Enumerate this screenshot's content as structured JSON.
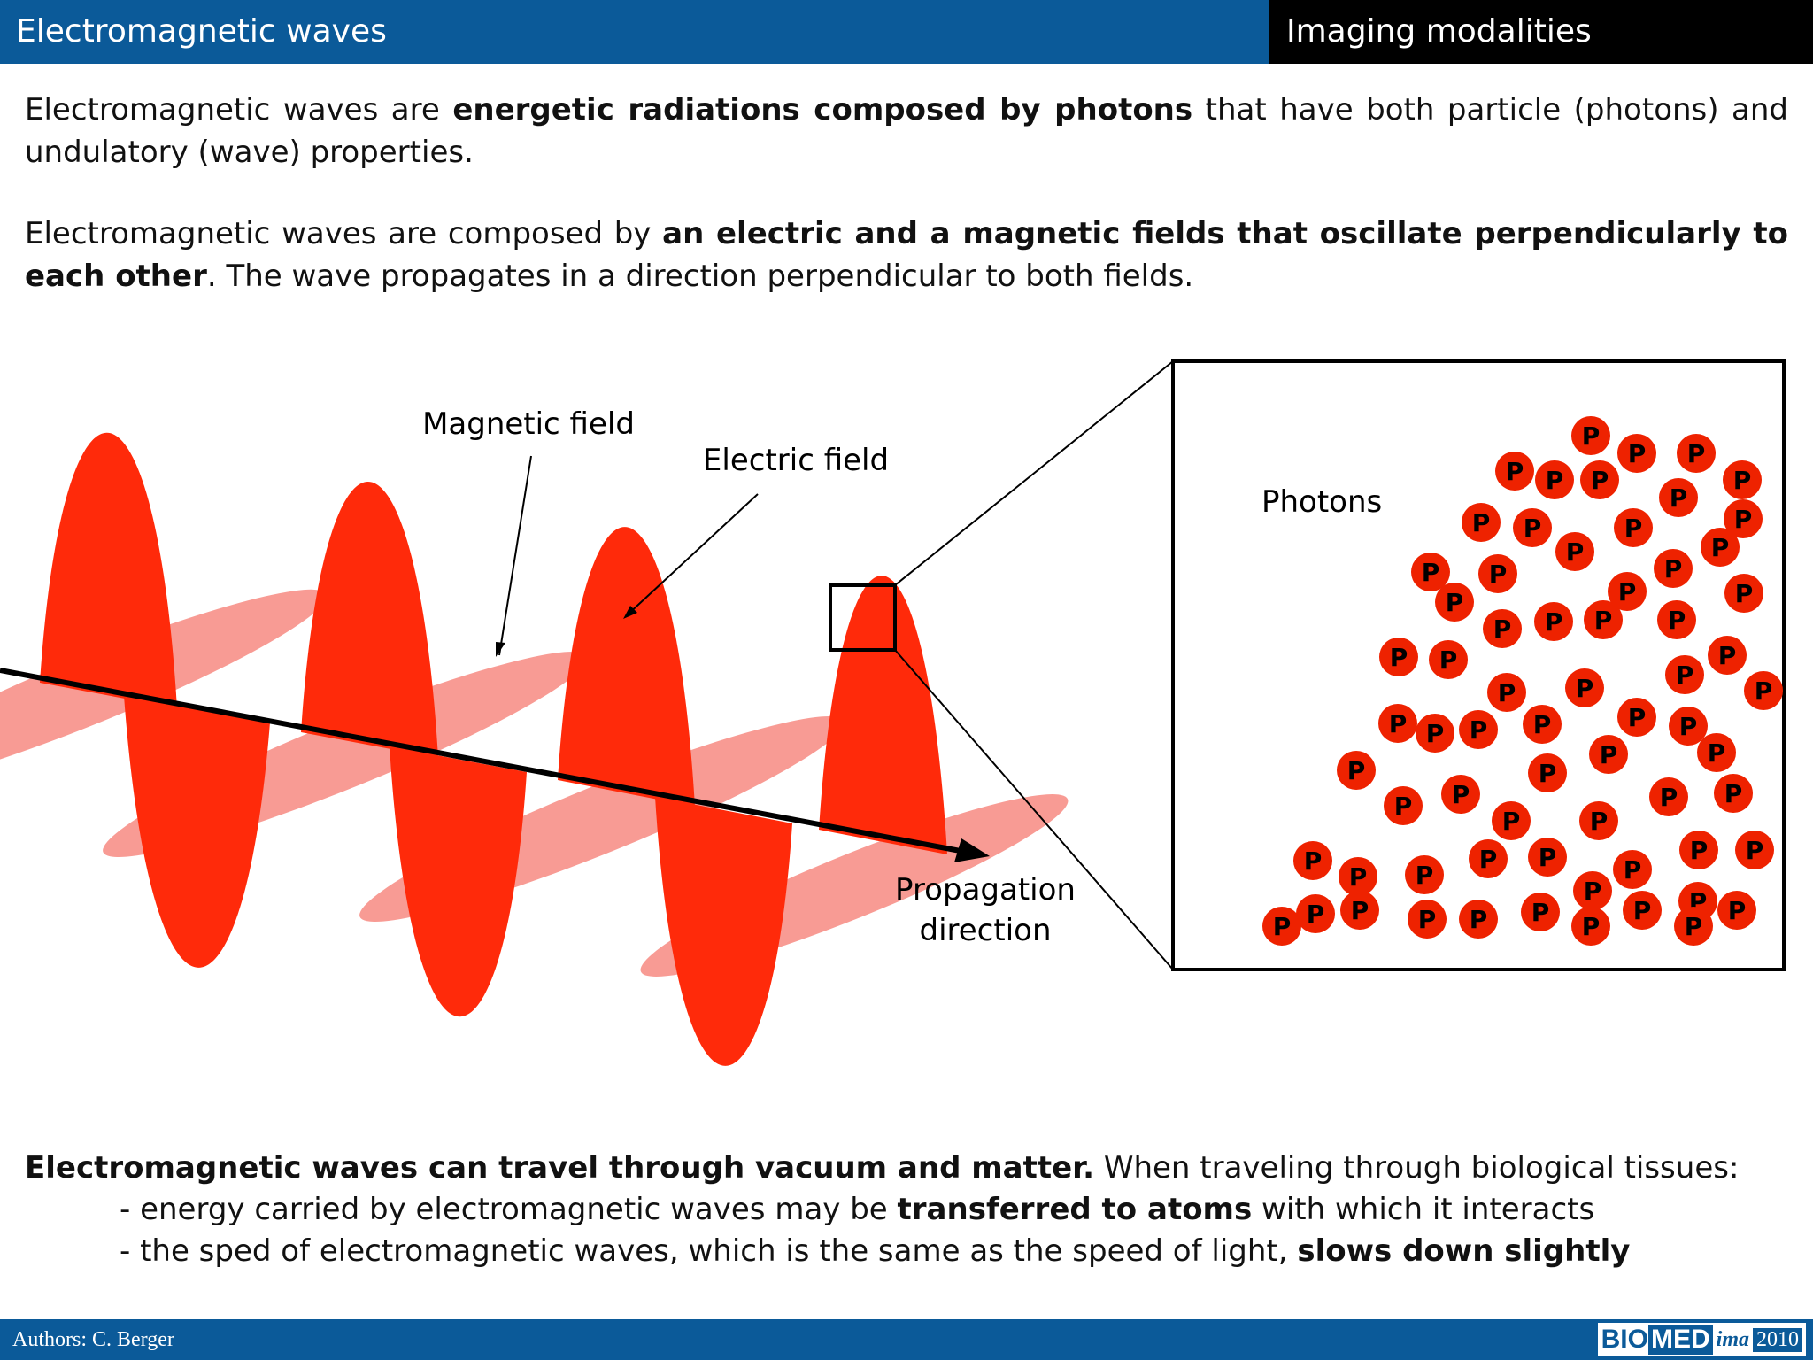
{
  "header": {
    "title": "Electromagnetic waves",
    "section": "Imaging modalities"
  },
  "intro": {
    "p1_a": "Electromagnetic waves are ",
    "p1_b": "energetic radiations composed by photons",
    "p1_c": " that have both particle (photons) and undulatory (wave) properties.",
    "p2_a": "Electromagnetic waves are composed by ",
    "p2_b": "an electric and a magnetic fields that oscillate perpendicularly to each other",
    "p2_c": ". The wave propagates in a direction perpendicular to both fields."
  },
  "diagram": {
    "magnetic_label": "Magnetic field",
    "electric_label": "Electric field",
    "propagation_line1": "Propagation",
    "propagation_line2": "direction",
    "photons_label": "Photons",
    "photon_letter": "P",
    "colors": {
      "electric": "#ff2a0a",
      "magnetic": "#f79088",
      "photon": "#ee2200"
    }
  },
  "bottom": {
    "bold": "Electromagnetic waves can travel through vacuum and matter.",
    "rest": " When traveling through biological tissues:",
    "b1_a": "- energy carried by electromagnetic waves may be ",
    "b1_b": "transferred to atoms",
    "b1_c": " with which it interacts",
    "b2_a": "- the sped of electromagnetic waves, which is the same as the speed of light, ",
    "b2_b": "slows down slightly"
  },
  "footer": {
    "authors": "Authors: C. Berger",
    "logo_bio": "BIO",
    "logo_med": "MED",
    "logo_ima": "ima",
    "logo_year": "2010"
  }
}
